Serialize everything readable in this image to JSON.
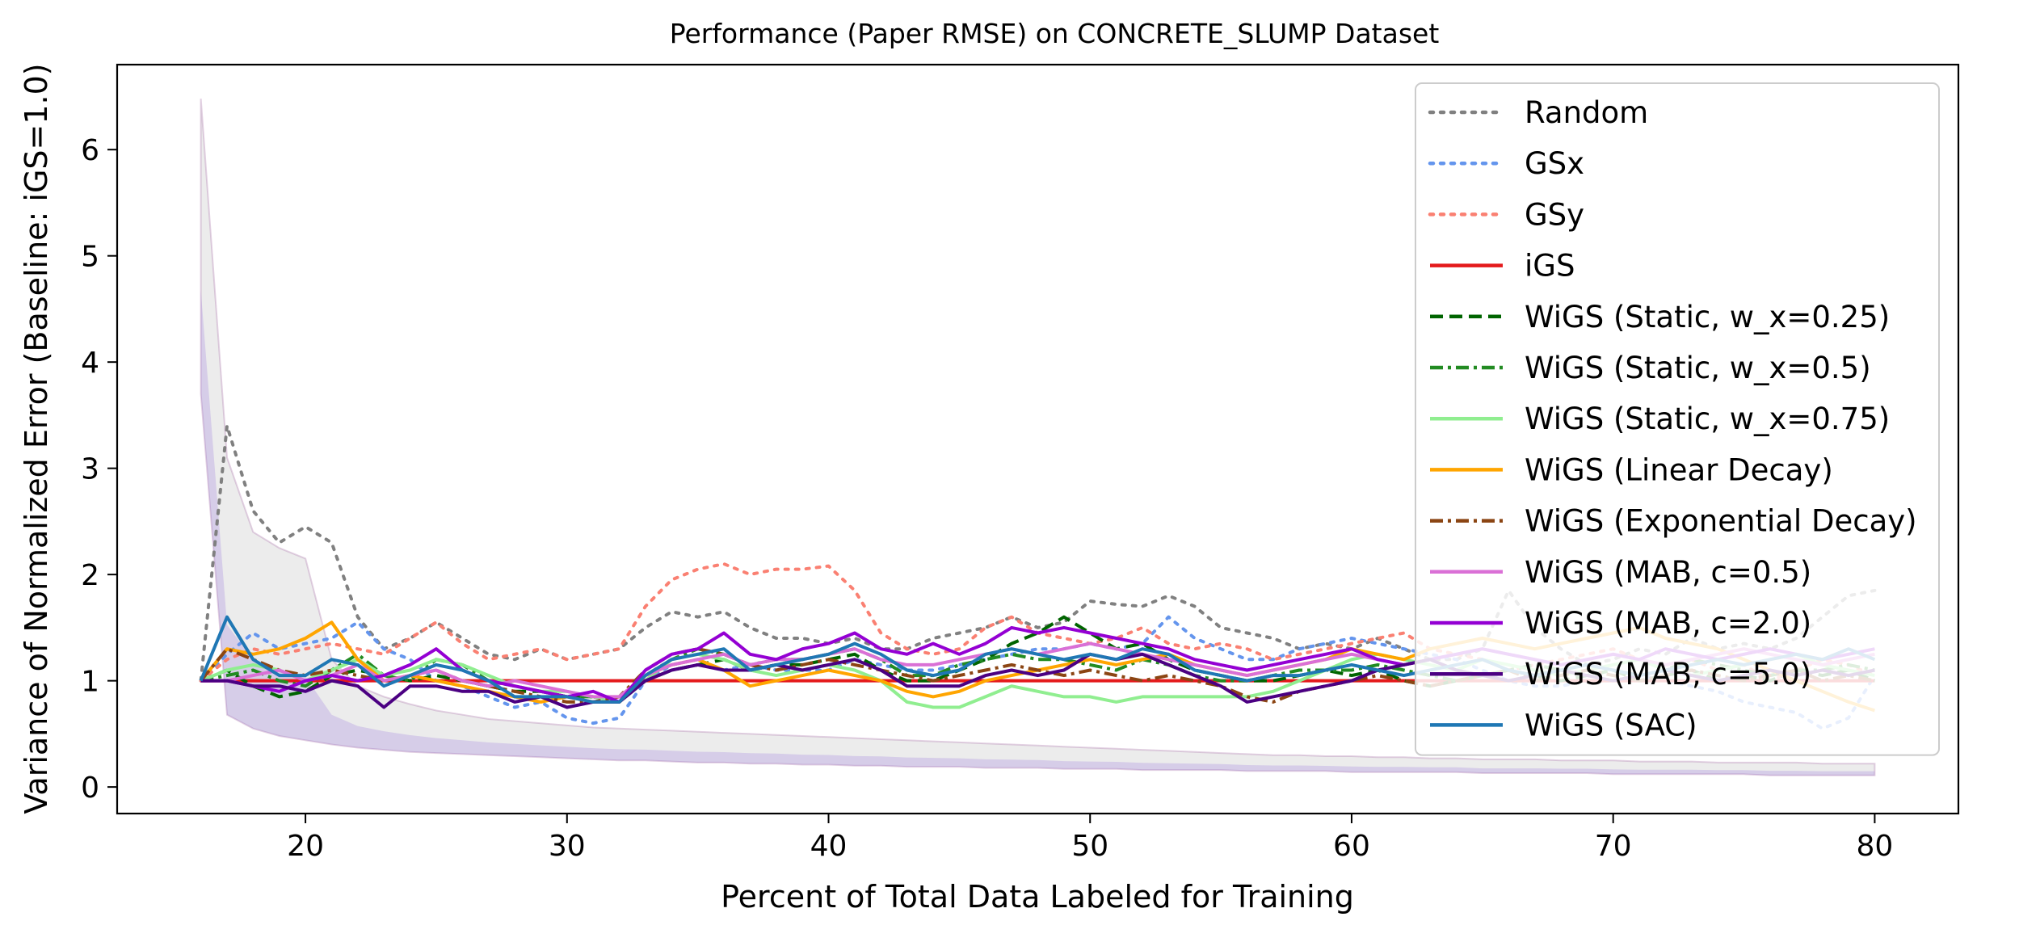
{
  "chart_data": {
    "type": "line",
    "title": "Performance (Paper RMSE) on CONCRETE_SLUMP Dataset",
    "xlabel": "Percent of Total Data Labeled for Training",
    "ylabel": "Variance of Normalized Error (Baseline: iGS=1.0)",
    "xlim": [
      12.8,
      83.2
    ],
    "ylim": [
      -0.25,
      6.8
    ],
    "xticks": [
      20,
      30,
      40,
      50,
      60,
      70,
      80
    ],
    "yticks": [
      0,
      1,
      2,
      3,
      4,
      5,
      6
    ],
    "grid": false,
    "legend_position": "top-right",
    "x": [
      16,
      17,
      18,
      19,
      20,
      21,
      22,
      23,
      24,
      25,
      26,
      27,
      28,
      29,
      30,
      31,
      32,
      33,
      34,
      35,
      36,
      37,
      38,
      39,
      40,
      41,
      42,
      43,
      44,
      45,
      46,
      47,
      48,
      49,
      50,
      51,
      52,
      53,
      54,
      55,
      56,
      57,
      58,
      59,
      60,
      61,
      62,
      63,
      64,
      65,
      66,
      67,
      68,
      69,
      70,
      71,
      72,
      73,
      74,
      75,
      76,
      77,
      78,
      79,
      80
    ],
    "band": {
      "lower": [
        3.7,
        0.68,
        0.55,
        0.48,
        0.44,
        0.4,
        0.37,
        0.35,
        0.33,
        0.32,
        0.31,
        0.3,
        0.29,
        0.28,
        0.27,
        0.26,
        0.25,
        0.25,
        0.24,
        0.23,
        0.23,
        0.22,
        0.22,
        0.21,
        0.21,
        0.2,
        0.2,
        0.19,
        0.19,
        0.19,
        0.18,
        0.18,
        0.18,
        0.17,
        0.17,
        0.17,
        0.16,
        0.16,
        0.16,
        0.16,
        0.15,
        0.15,
        0.15,
        0.15,
        0.14,
        0.14,
        0.14,
        0.14,
        0.14,
        0.13,
        0.13,
        0.13,
        0.13,
        0.13,
        0.12,
        0.12,
        0.12,
        0.12,
        0.12,
        0.12,
        0.11,
        0.11,
        0.11,
        0.11,
        0.11
      ],
      "upper": [
        6.48,
        3.1,
        2.4,
        2.25,
        2.15,
        1.2,
        0.95,
        0.85,
        0.78,
        0.72,
        0.68,
        0.64,
        0.62,
        0.6,
        0.58,
        0.56,
        0.55,
        0.54,
        0.53,
        0.52,
        0.51,
        0.5,
        0.49,
        0.48,
        0.47,
        0.46,
        0.45,
        0.44,
        0.43,
        0.42,
        0.41,
        0.4,
        0.39,
        0.38,
        0.37,
        0.36,
        0.35,
        0.34,
        0.33,
        0.32,
        0.31,
        0.3,
        0.3,
        0.29,
        0.29,
        0.28,
        0.28,
        0.27,
        0.27,
        0.26,
        0.26,
        0.26,
        0.25,
        0.25,
        0.25,
        0.24,
        0.24,
        0.24,
        0.23,
        0.23,
        0.23,
        0.23,
        0.22,
        0.22,
        0.22
      ]
    },
    "series": [
      {
        "name": "Random",
        "color": "#808080",
        "dash": "dotted",
        "values": [
          1.0,
          3.4,
          2.6,
          2.3,
          2.45,
          2.3,
          1.6,
          1.3,
          1.4,
          1.55,
          1.4,
          1.25,
          1.2,
          1.3,
          1.2,
          1.25,
          1.3,
          1.5,
          1.65,
          1.6,
          1.65,
          1.5,
          1.4,
          1.4,
          1.35,
          1.4,
          1.3,
          1.3,
          1.4,
          1.45,
          1.5,
          1.6,
          1.5,
          1.55,
          1.75,
          1.72,
          1.7,
          1.8,
          1.7,
          1.5,
          1.45,
          1.4,
          1.3,
          1.35,
          1.3,
          1.4,
          1.3,
          1.2,
          1.2,
          1.3,
          1.85,
          1.5,
          1.3,
          1.15,
          1.2,
          1.3,
          1.25,
          1.4,
          1.3,
          1.35,
          1.3,
          1.4,
          1.6,
          1.8,
          1.85
        ]
      },
      {
        "name": "GSx",
        "color": "#6495ED",
        "dash": "dotted",
        "values": [
          1.0,
          1.25,
          1.45,
          1.3,
          1.35,
          1.4,
          1.55,
          1.3,
          1.2,
          1.0,
          0.95,
          0.85,
          0.75,
          0.8,
          0.65,
          0.6,
          0.65,
          1.0,
          1.15,
          1.2,
          1.1,
          1.15,
          1.1,
          1.1,
          1.1,
          1.2,
          1.15,
          1.1,
          1.1,
          1.15,
          1.2,
          1.25,
          1.3,
          1.3,
          1.35,
          1.3,
          1.35,
          1.6,
          1.4,
          1.3,
          1.2,
          1.2,
          1.3,
          1.35,
          1.4,
          1.35,
          1.3,
          1.25,
          1.2,
          1.1,
          1.0,
          0.95,
          0.95,
          1.0,
          1.0,
          1.05,
          1.0,
          0.95,
          0.9,
          0.8,
          0.75,
          0.7,
          0.55,
          0.65,
          1.05
        ]
      },
      {
        "name": "GSy",
        "color": "#FA8072",
        "dash": "dotted",
        "values": [
          1.0,
          1.2,
          1.3,
          1.25,
          1.3,
          1.35,
          1.3,
          1.25,
          1.4,
          1.55,
          1.35,
          1.2,
          1.25,
          1.3,
          1.2,
          1.25,
          1.3,
          1.7,
          1.95,
          2.05,
          2.1,
          2.0,
          2.05,
          2.05,
          2.08,
          1.85,
          1.45,
          1.3,
          1.25,
          1.3,
          1.5,
          1.6,
          1.45,
          1.4,
          1.35,
          1.4,
          1.5,
          1.35,
          1.3,
          1.35,
          1.3,
          1.2,
          1.25,
          1.3,
          1.35,
          1.4,
          1.45,
          1.3,
          1.25,
          1.2,
          1.1,
          1.15,
          1.2,
          1.25,
          1.3,
          1.2,
          1.15,
          1.2,
          1.1,
          1.15,
          1.0,
          1.1,
          1.2,
          1.15,
          1.05
        ]
      },
      {
        "name": "iGS",
        "color": "#E41A1C",
        "dash": "solid",
        "values": [
          1,
          1,
          1,
          1,
          1,
          1,
          1,
          1,
          1,
          1,
          1,
          1,
          1,
          1,
          1,
          1,
          1,
          1,
          1,
          1,
          1,
          1,
          1,
          1,
          1,
          1,
          1,
          1,
          1,
          1,
          1,
          1,
          1,
          1,
          1,
          1,
          1,
          1,
          1,
          1,
          1,
          1,
          1,
          1,
          1,
          1,
          1,
          1,
          1,
          1,
          1,
          1,
          1,
          1,
          1,
          1,
          1,
          1,
          1,
          1,
          1,
          1,
          1,
          1,
          1
        ]
      },
      {
        "name": "WiGS (Static, w_x=0.25)",
        "color": "#006400",
        "dash": "dashed",
        "values": [
          1.0,
          1.1,
          0.95,
          0.85,
          0.9,
          1.05,
          1.1,
          1.05,
          1.0,
          1.05,
          1.0,
          0.95,
          0.9,
          0.9,
          0.85,
          0.85,
          0.8,
          1.0,
          1.1,
          1.15,
          1.2,
          1.1,
          1.15,
          1.15,
          1.2,
          1.25,
          1.1,
          1.0,
          1.0,
          1.1,
          1.2,
          1.35,
          1.45,
          1.6,
          1.45,
          1.3,
          1.35,
          1.2,
          1.1,
          1.05,
          1.0,
          1.0,
          1.05,
          1.1,
          1.05,
          1.1,
          1.0,
          0.95,
          1.0,
          1.05,
          1.1,
          1.05,
          1.0,
          1.05,
          1.1,
          1.0,
          1.05,
          1.1,
          1.0,
          1.05,
          1.0,
          1.1,
          1.05,
          1.1,
          1.0
        ]
      },
      {
        "name": "WiGS (Static, w_x=0.5)",
        "color": "#228B22",
        "dash": "dashdot",
        "values": [
          1.0,
          1.05,
          1.1,
          1.0,
          0.95,
          1.1,
          1.25,
          1.05,
          1.0,
          1.2,
          1.15,
          1.0,
          0.95,
          0.9,
          0.85,
          0.85,
          0.8,
          1.05,
          1.2,
          1.3,
          1.25,
          1.15,
          1.2,
          1.2,
          1.25,
          1.3,
          1.2,
          1.05,
          1.05,
          1.15,
          1.2,
          1.25,
          1.2,
          1.2,
          1.15,
          1.1,
          1.2,
          1.15,
          1.05,
          1.0,
          1.0,
          1.05,
          1.1,
          1.1,
          1.1,
          1.15,
          1.1,
          1.05,
          1.0,
          1.05,
          1.1,
          1.15,
          1.1,
          1.05,
          1.1,
          1.05,
          1.1,
          1.2,
          1.15,
          1.1,
          1.05,
          1.1,
          1.1,
          1.15,
          1.1
        ]
      },
      {
        "name": "WiGS (Static, w_x=0.75)",
        "color": "#90EE90",
        "dash": "solid",
        "values": [
          1.0,
          1.1,
          1.15,
          1.1,
          1.0,
          1.1,
          1.2,
          1.05,
          1.1,
          1.2,
          1.15,
          1.05,
          0.95,
          0.9,
          0.9,
          0.85,
          0.8,
          1.0,
          1.2,
          1.25,
          1.2,
          1.1,
          1.05,
          1.1,
          1.15,
          1.1,
          1.0,
          0.8,
          0.75,
          0.75,
          0.85,
          0.95,
          0.9,
          0.85,
          0.85,
          0.8,
          0.85,
          0.85,
          0.85,
          0.85,
          0.85,
          0.9,
          1.0,
          1.1,
          1.2,
          1.25,
          1.2,
          1.15,
          1.1,
          1.2,
          1.15,
          1.1,
          1.05,
          1.1,
          1.15,
          1.2,
          1.1,
          1.05,
          1.1,
          1.15,
          1.2,
          1.25,
          1.15,
          1.1,
          1.05
        ]
      },
      {
        "name": "WiGS (Linear Decay)",
        "color": "#FFA500",
        "dash": "solid",
        "values": [
          1.0,
          1.3,
          1.25,
          1.3,
          1.4,
          1.55,
          1.2,
          1.0,
          1.05,
          1.0,
          0.95,
          0.9,
          0.85,
          0.8,
          0.85,
          0.8,
          0.8,
          1.05,
          1.15,
          1.2,
          1.1,
          0.95,
          1.0,
          1.05,
          1.1,
          1.05,
          1.0,
          0.9,
          0.85,
          0.9,
          1.0,
          1.05,
          1.1,
          1.15,
          1.2,
          1.15,
          1.2,
          1.25,
          1.15,
          1.1,
          1.05,
          1.1,
          1.15,
          1.2,
          1.3,
          1.25,
          1.2,
          1.3,
          1.35,
          1.4,
          1.35,
          1.3,
          1.35,
          1.4,
          1.45,
          1.5,
          1.4,
          1.35,
          1.3,
          1.2,
          1.1,
          1.0,
          0.9,
          0.8,
          0.72
        ]
      },
      {
        "name": "WiGS (Exponential Decay)",
        "color": "#8B4513",
        "dash": "dashdot",
        "values": [
          1.0,
          1.3,
          1.2,
          1.1,
          1.05,
          1.1,
          1.05,
          1.0,
          1.05,
          1.1,
          1.0,
          0.95,
          0.9,
          0.85,
          0.8,
          0.8,
          0.85,
          1.1,
          1.25,
          1.3,
          1.25,
          1.15,
          1.1,
          1.15,
          1.2,
          1.15,
          1.1,
          1.05,
          1.0,
          1.05,
          1.1,
          1.15,
          1.1,
          1.05,
          1.1,
          1.05,
          1.0,
          1.05,
          1.0,
          0.95,
          0.85,
          0.8,
          0.9,
          0.95,
          1.0,
          1.05,
          1.0,
          0.95,
          1.0,
          1.05,
          1.1,
          1.0,
          1.05,
          1.1,
          1.05,
          1.0,
          1.05,
          1.1,
          1.05,
          1.0,
          1.05,
          1.1,
          1.0,
          1.05,
          1.0
        ]
      },
      {
        "name": "WiGS (MAB, c=0.5)",
        "color": "#DA70D6",
        "dash": "solid",
        "values": [
          1.0,
          1.0,
          1.05,
          1.1,
          1.0,
          1.05,
          1.15,
          1.0,
          1.05,
          1.1,
          1.0,
          0.95,
          1.0,
          0.95,
          0.9,
          0.85,
          0.85,
          1.05,
          1.15,
          1.2,
          1.25,
          1.15,
          1.2,
          1.2,
          1.25,
          1.3,
          1.2,
          1.15,
          1.15,
          1.2,
          1.25,
          1.3,
          1.25,
          1.3,
          1.35,
          1.3,
          1.25,
          1.2,
          1.15,
          1.1,
          1.05,
          1.1,
          1.15,
          1.2,
          1.25,
          1.2,
          1.15,
          1.2,
          1.25,
          1.3,
          1.25,
          1.2,
          1.15,
          1.2,
          1.25,
          1.2,
          1.15,
          1.2,
          1.25,
          1.3,
          1.25,
          1.2,
          1.15,
          1.2,
          1.25
        ]
      },
      {
        "name": "WiGS (MAB, c=2.0)",
        "color": "#9400D3",
        "dash": "solid",
        "values": [
          1.0,
          1.0,
          0.95,
          0.9,
          1.0,
          1.05,
          1.0,
          1.05,
          1.15,
          1.3,
          1.1,
          1.0,
          0.95,
          0.9,
          0.85,
          0.9,
          0.8,
          1.1,
          1.25,
          1.3,
          1.45,
          1.25,
          1.2,
          1.3,
          1.35,
          1.45,
          1.3,
          1.25,
          1.35,
          1.25,
          1.35,
          1.5,
          1.45,
          1.5,
          1.45,
          1.4,
          1.35,
          1.3,
          1.2,
          1.15,
          1.1,
          1.15,
          1.2,
          1.25,
          1.3,
          1.2,
          1.15,
          1.2,
          1.25,
          1.3,
          1.25,
          1.2,
          1.15,
          1.2,
          1.25,
          1.2,
          1.3,
          1.25,
          1.2,
          1.25,
          1.3,
          1.25,
          1.2,
          1.25,
          1.3
        ]
      },
      {
        "name": "WiGS (MAB, c=5.0)",
        "color": "#4B0082",
        "dash": "solid",
        "values": [
          1.0,
          1.0,
          0.95,
          0.95,
          0.9,
          1.0,
          0.95,
          0.75,
          0.95,
          0.95,
          0.9,
          0.9,
          0.8,
          0.85,
          0.75,
          0.8,
          0.8,
          1.0,
          1.1,
          1.15,
          1.1,
          1.1,
          1.15,
          1.1,
          1.15,
          1.2,
          1.1,
          0.95,
          0.95,
          0.95,
          1.05,
          1.1,
          1.05,
          1.1,
          1.25,
          1.2,
          1.25,
          1.15,
          1.05,
          0.95,
          0.8,
          0.85,
          0.9,
          0.95,
          1.0,
          1.1,
          1.15,
          1.2,
          1.1,
          1.05,
          1.0,
          1.05,
          1.1,
          1.05,
          1.0,
          1.05,
          1.1,
          1.05,
          1.0,
          1.05,
          1.1,
          1.05,
          1.1,
          1.05,
          1.1
        ]
      },
      {
        "name": "WiGS (SAC)",
        "color": "#1F77B4",
        "dash": "solid",
        "values": [
          1.0,
          1.6,
          1.2,
          1.05,
          1.05,
          1.2,
          1.15,
          0.95,
          1.05,
          1.15,
          1.1,
          1.0,
          0.85,
          0.85,
          0.85,
          0.8,
          0.8,
          1.05,
          1.2,
          1.25,
          1.3,
          1.1,
          1.15,
          1.2,
          1.25,
          1.35,
          1.25,
          1.1,
          1.05,
          1.1,
          1.25,
          1.3,
          1.25,
          1.2,
          1.25,
          1.2,
          1.3,
          1.25,
          1.1,
          1.05,
          1.0,
          1.05,
          1.05,
          1.1,
          1.15,
          1.1,
          1.05,
          1.1,
          1.15,
          1.2,
          1.1,
          1.05,
          1.1,
          1.15,
          1.1,
          1.05,
          1.1,
          1.15,
          1.2,
          1.15,
          1.2,
          1.25,
          1.2,
          1.3,
          1.2
        ]
      }
    ]
  }
}
